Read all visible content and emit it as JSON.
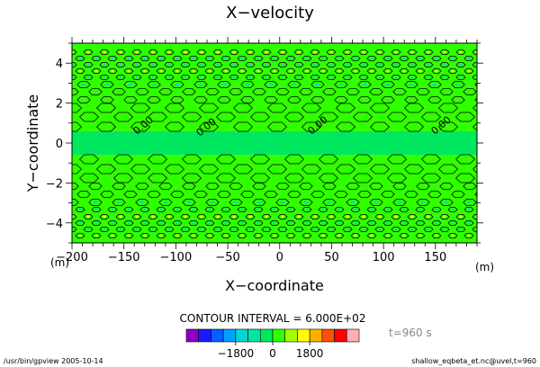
{
  "chart_data": {
    "type": "heatmap",
    "title": "X−velocity",
    "xlabel": "X−coordinate",
    "ylabel": "Y−coordinate",
    "x_unit": "(m)",
    "y_unit": "(m)",
    "xlim": [
      -200,
      190
    ],
    "ylim": [
      -5,
      5
    ],
    "xticks": [
      -200,
      -150,
      -100,
      -50,
      0,
      50,
      100,
      150
    ],
    "xtick_labels": [
      "−200",
      "−150",
      "−100",
      "−50",
      "0",
      "50",
      "100",
      "150"
    ],
    "yticks": [
      -4,
      -2,
      0,
      2,
      4
    ],
    "ytick_labels": [
      "−4",
      "−2",
      "0",
      "2",
      "4"
    ],
    "contour_labels": [
      "0.00",
      "0.00",
      "0.00",
      "0.00"
    ],
    "contour_interval_text": "CONTOUR INTERVAL = 6.000E+02",
    "time_text": "t=960 s",
    "colorbar": {
      "colors": [
        "#8a00c8",
        "#1a1aff",
        "#0060ff",
        "#00a0ff",
        "#00d8d8",
        "#00e8a0",
        "#00e860",
        "#30ff00",
        "#a0ff00",
        "#ffff00",
        "#ffb000",
        "#ff5000",
        "#ff0000",
        "#ffb0b0"
      ],
      "tick_labels": [
        "−1800",
        "0",
        "1800"
      ],
      "tick_values": [
        -1800,
        0,
        1800
      ],
      "range": [
        -4200,
        4200
      ]
    },
    "grid": false,
    "legend": "colorbar-bottom"
  },
  "footer": {
    "left": "/usr/bin/gpview  2005-10-14",
    "right": "shallow_eqbeta_et.nc@uvel,t=960"
  }
}
